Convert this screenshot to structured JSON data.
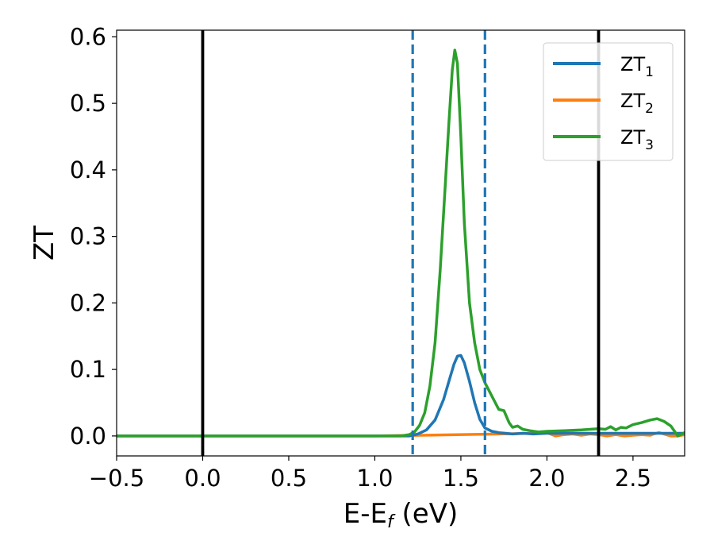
{
  "chart_data": {
    "type": "line",
    "xlabel": "E-E",
    "xlabel_sub": "f",
    "xlabel_unit": " (eV)",
    "ylabel": "ZT",
    "xlim": [
      -0.5,
      2.8
    ],
    "ylim": [
      -0.03,
      0.61
    ],
    "xticks": [
      -0.5,
      0.0,
      0.5,
      1.0,
      1.5,
      2.0,
      2.5
    ],
    "xtick_labels": [
      "−0.5",
      "0.0",
      "0.5",
      "1.0",
      "1.5",
      "2.0",
      "2.5"
    ],
    "yticks": [
      0.0,
      0.1,
      0.2,
      0.3,
      0.4,
      0.5,
      0.6
    ],
    "ytick_labels": [
      "0.0",
      "0.1",
      "0.2",
      "0.3",
      "0.4",
      "0.5",
      "0.6"
    ],
    "grid": false,
    "legend_position": "top-right",
    "vlines": [
      {
        "x": 0.0,
        "color": "#000000",
        "style": "solid"
      },
      {
        "x": 2.3,
        "color": "#000000",
        "style": "solid"
      },
      {
        "x": 1.22,
        "color": "#1f77b4",
        "style": "dashed"
      },
      {
        "x": 1.64,
        "color": "#1f77b4",
        "style": "dashed"
      }
    ],
    "series": [
      {
        "name": "ZT",
        "name_sub": "1",
        "color": "#1f77b4",
        "x": [
          -0.5,
          1.0,
          1.2,
          1.25,
          1.3,
          1.35,
          1.4,
          1.43,
          1.46,
          1.48,
          1.5,
          1.52,
          1.55,
          1.58,
          1.61,
          1.64,
          1.68,
          1.72,
          1.8,
          1.86,
          1.92,
          2.0,
          2.1,
          2.2,
          2.3,
          2.4,
          2.5,
          2.6,
          2.7,
          2.8
        ],
        "y": [
          0.0,
          0.0,
          0.0,
          0.003,
          0.009,
          0.024,
          0.055,
          0.082,
          0.108,
          0.12,
          0.121,
          0.11,
          0.082,
          0.05,
          0.025,
          0.012,
          0.007,
          0.005,
          0.003,
          0.004,
          0.003,
          0.004,
          0.004,
          0.004,
          0.004,
          0.004,
          0.004,
          0.004,
          0.004,
          0.004
        ]
      },
      {
        "name": "ZT",
        "name_sub": "2",
        "color": "#ff7f0e",
        "x": [
          -0.5,
          1.0,
          1.95,
          2.0,
          2.05,
          2.1,
          2.15,
          2.2,
          2.25,
          2.3,
          2.35,
          2.4,
          2.45,
          2.5,
          2.55,
          2.6,
          2.62,
          2.65,
          2.68,
          2.72,
          2.76,
          2.8
        ],
        "y": [
          0.0,
          0.0,
          0.004,
          0.005,
          0.0,
          0.002,
          0.003,
          0.001,
          0.003,
          0.002,
          0.0,
          0.002,
          0.0,
          0.001,
          0.002,
          0.001,
          0.003,
          0.005,
          0.003,
          0.0,
          0.0,
          0.002
        ]
      },
      {
        "name": "ZT",
        "name_sub": "3",
        "color": "#2ca02c",
        "x": [
          -0.5,
          1.0,
          1.15,
          1.2,
          1.23,
          1.26,
          1.29,
          1.32,
          1.35,
          1.38,
          1.41,
          1.43,
          1.45,
          1.465,
          1.48,
          1.5,
          1.52,
          1.55,
          1.58,
          1.61,
          1.64,
          1.67,
          1.7,
          1.72,
          1.75,
          1.78,
          1.8,
          1.83,
          1.86,
          1.9,
          1.95,
          2.0,
          2.1,
          2.2,
          2.3,
          2.34,
          2.37,
          2.4,
          2.43,
          2.46,
          2.5,
          2.55,
          2.6,
          2.64,
          2.68,
          2.72,
          2.76,
          2.8
        ],
        "y": [
          0.0,
          0.0,
          0.0,
          0.002,
          0.006,
          0.016,
          0.035,
          0.075,
          0.14,
          0.25,
          0.38,
          0.47,
          0.55,
          0.58,
          0.56,
          0.45,
          0.32,
          0.2,
          0.14,
          0.1,
          0.08,
          0.065,
          0.05,
          0.04,
          0.038,
          0.02,
          0.013,
          0.015,
          0.01,
          0.008,
          0.006,
          0.007,
          0.008,
          0.009,
          0.011,
          0.01,
          0.014,
          0.009,
          0.013,
          0.012,
          0.017,
          0.02,
          0.024,
          0.026,
          0.022,
          0.015,
          0.0,
          0.005
        ]
      }
    ]
  }
}
